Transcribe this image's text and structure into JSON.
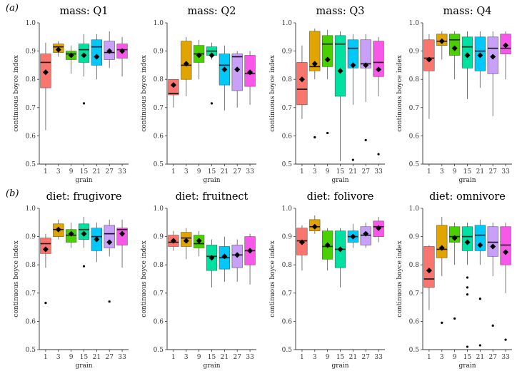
{
  "row_labels": [
    "(a)",
    "(b)"
  ],
  "colors": [
    "#F8766D",
    "#E0A500",
    "#4AD000",
    "#00E0A0",
    "#00C8F8",
    "#C9A0F8",
    "#F858E8"
  ],
  "chart_data": [
    {
      "type": "box",
      "title": "mass: Q1",
      "xlabel": "grain",
      "ylabel": "continuous boyce index",
      "categories": [
        "1",
        "3",
        "9",
        "15",
        "21",
        "27",
        "33"
      ],
      "ylim": [
        0.5,
        1.0
      ],
      "yticks": [
        "0.5",
        "0.6",
        "0.7",
        "0.8",
        "0.9",
        "1.0"
      ],
      "boxes": [
        {
          "whisker_low": 0.62,
          "q1": 0.77,
          "median": 0.86,
          "q3": 0.89,
          "whisker_high": 0.93,
          "mean": 0.825,
          "outliers": []
        },
        {
          "whisker_low": 0.88,
          "q1": 0.895,
          "median": 0.915,
          "q3": 0.925,
          "whisker_high": 0.935,
          "mean": 0.905,
          "outliers": []
        },
        {
          "whisker_low": 0.82,
          "q1": 0.87,
          "median": 0.89,
          "q3": 0.9,
          "whisker_high": 0.92,
          "mean": 0.885,
          "outliers": []
        },
        {
          "whisker_low": 0.81,
          "q1": 0.86,
          "median": 0.905,
          "q3": 0.925,
          "whisker_high": 0.96,
          "mean": 0.885,
          "outliers": [
            0.715
          ]
        },
        {
          "whisker_low": 0.8,
          "q1": 0.85,
          "median": 0.915,
          "q3": 0.94,
          "whisker_high": 0.96,
          "mean": 0.88,
          "outliers": []
        },
        {
          "whisker_low": 0.84,
          "q1": 0.87,
          "median": 0.895,
          "q3": 0.935,
          "whisker_high": 0.97,
          "mean": 0.9,
          "outliers": []
        },
        {
          "whisker_low": 0.81,
          "q1": 0.875,
          "median": 0.905,
          "q3": 0.925,
          "whisker_high": 0.95,
          "mean": 0.9,
          "outliers": []
        }
      ]
    },
    {
      "type": "box",
      "title": "mass: Q2",
      "xlabel": "grain",
      "ylabel": "continuous boyce index",
      "categories": [
        "1",
        "3",
        "9",
        "15",
        "21",
        "27",
        "33"
      ],
      "ylim": [
        0.5,
        1.0
      ],
      "yticks": [
        "0.5",
        "0.6",
        "0.7",
        "0.8",
        "0.9",
        "1.0"
      ],
      "boxes": [
        {
          "whisker_low": 0.7,
          "q1": 0.745,
          "median": 0.75,
          "q3": 0.8,
          "whisker_high": 0.8,
          "mean": 0.78,
          "outliers": []
        },
        {
          "whisker_low": 0.74,
          "q1": 0.8,
          "median": 0.85,
          "q3": 0.935,
          "whisker_high": 0.95,
          "mean": 0.855,
          "outliers": []
        },
        {
          "whisker_low": 0.8,
          "q1": 0.86,
          "median": 0.89,
          "q3": 0.92,
          "whisker_high": 0.94,
          "mean": 0.885,
          "outliers": []
        },
        {
          "whisker_low": 0.87,
          "q1": 0.885,
          "median": 0.9,
          "q3": 0.915,
          "whisker_high": 0.93,
          "mean": 0.885,
          "outliers": [
            0.715
          ]
        },
        {
          "whisker_low": 0.69,
          "q1": 0.78,
          "median": 0.85,
          "q3": 0.89,
          "whisker_high": 0.92,
          "mean": 0.835,
          "outliers": []
        },
        {
          "whisker_low": 0.7,
          "q1": 0.76,
          "median": 0.88,
          "q3": 0.89,
          "whisker_high": 0.9,
          "mean": 0.835,
          "outliers": []
        },
        {
          "whisker_low": 0.71,
          "q1": 0.775,
          "median": 0.82,
          "q3": 0.885,
          "whisker_high": 0.9,
          "mean": 0.825,
          "outliers": []
        }
      ]
    },
    {
      "type": "box",
      "title": "mass: Q3",
      "xlabel": "grain",
      "ylabel": "continuous boyce index",
      "categories": [
        "1",
        "3",
        "9",
        "15",
        "21",
        "27",
        "33"
      ],
      "ylim": [
        0.5,
        1.0
      ],
      "yticks": [
        "0.5",
        "0.6",
        "0.7",
        "0.8",
        "0.9",
        "1.0"
      ],
      "boxes": [
        {
          "whisker_low": 0.66,
          "q1": 0.71,
          "median": 0.765,
          "q3": 0.86,
          "whisker_high": 0.92,
          "mean": 0.8,
          "outliers": []
        },
        {
          "whisker_low": 0.8,
          "q1": 0.83,
          "median": 0.845,
          "q3": 0.97,
          "whisker_high": 0.98,
          "mean": 0.855,
          "outliers": [
            0.595
          ]
        },
        {
          "whisker_low": 0.8,
          "q1": 0.845,
          "median": 0.925,
          "q3": 0.955,
          "whisker_high": 0.975,
          "mean": 0.87,
          "outliers": [
            0.61
          ]
        },
        {
          "whisker_low": 0.51,
          "q1": 0.74,
          "median": 0.925,
          "q3": 0.955,
          "whisker_high": 0.97,
          "mean": 0.83,
          "outliers": []
        },
        {
          "whisker_low": 0.71,
          "q1": 0.84,
          "median": 0.91,
          "q3": 0.94,
          "whisker_high": 0.96,
          "mean": 0.85,
          "outliers": [
            0.515
          ]
        },
        {
          "whisker_low": 0.72,
          "q1": 0.84,
          "median": 0.855,
          "q3": 0.94,
          "whisker_high": 0.96,
          "mean": 0.85,
          "outliers": [
            0.585
          ]
        },
        {
          "whisker_low": 0.74,
          "q1": 0.81,
          "median": 0.86,
          "q3": 0.935,
          "whisker_high": 0.95,
          "mean": 0.835,
          "outliers": [
            0.535
          ]
        }
      ]
    },
    {
      "type": "box",
      "title": "mass: Q4",
      "xlabel": "grain",
      "ylabel": "continuous boyce index",
      "categories": [
        "1",
        "3",
        "9",
        "15",
        "21",
        "27",
        "33"
      ],
      "ylim": [
        0.5,
        1.0
      ],
      "yticks": [
        "0.5",
        "0.6",
        "0.7",
        "0.8",
        "0.9",
        "1.0"
      ],
      "boxes": [
        {
          "whisker_low": 0.66,
          "q1": 0.83,
          "median": 0.875,
          "q3": 0.94,
          "whisker_high": 0.96,
          "mean": 0.87,
          "outliers": []
        },
        {
          "whisker_low": 0.87,
          "q1": 0.92,
          "median": 0.935,
          "q3": 0.96,
          "whisker_high": 0.97,
          "mean": 0.935,
          "outliers": []
        },
        {
          "whisker_low": 0.8,
          "q1": 0.885,
          "median": 0.94,
          "q3": 0.96,
          "whisker_high": 0.97,
          "mean": 0.91,
          "outliers": []
        },
        {
          "whisker_low": 0.73,
          "q1": 0.84,
          "median": 0.915,
          "q3": 0.95,
          "whisker_high": 0.97,
          "mean": 0.885,
          "outliers": []
        },
        {
          "whisker_low": 0.77,
          "q1": 0.83,
          "median": 0.9,
          "q3": 0.95,
          "whisker_high": 0.97,
          "mean": 0.885,
          "outliers": []
        },
        {
          "whisker_low": 0.67,
          "q1": 0.82,
          "median": 0.91,
          "q3": 0.95,
          "whisker_high": 0.97,
          "mean": 0.88,
          "outliers": []
        },
        {
          "whisker_low": 0.8,
          "q1": 0.89,
          "median": 0.91,
          "q3": 0.96,
          "whisker_high": 0.97,
          "mean": 0.92,
          "outliers": []
        }
      ]
    },
    {
      "type": "box",
      "title": "diet: frugivore",
      "xlabel": "grain",
      "ylabel": "continuous boyce index",
      "categories": [
        "1",
        "3",
        "9",
        "15",
        "21",
        "27",
        "33"
      ],
      "ylim": [
        0.5,
        1.0
      ],
      "yticks": [
        "0.5",
        "0.6",
        "0.7",
        "0.8",
        "0.9",
        "1.0"
      ],
      "boxes": [
        {
          "whisker_low": 0.79,
          "q1": 0.84,
          "median": 0.875,
          "q3": 0.895,
          "whisker_high": 0.91,
          "mean": 0.855,
          "outliers": [
            0.665
          ]
        },
        {
          "whisker_low": 0.89,
          "q1": 0.9,
          "median": 0.925,
          "q3": 0.945,
          "whisker_high": 0.96,
          "mean": 0.925,
          "outliers": []
        },
        {
          "whisker_low": 0.86,
          "q1": 0.88,
          "median": 0.905,
          "q3": 0.925,
          "whisker_high": 0.95,
          "mean": 0.91,
          "outliers": []
        },
        {
          "whisker_low": 0.86,
          "q1": 0.89,
          "median": 0.925,
          "q3": 0.945,
          "whisker_high": 0.97,
          "mean": 0.91,
          "outliers": [
            0.795
          ]
        },
        {
          "whisker_low": 0.81,
          "q1": 0.85,
          "median": 0.9,
          "q3": 0.93,
          "whisker_high": 0.95,
          "mean": 0.89,
          "outliers": []
        },
        {
          "whisker_low": 0.83,
          "q1": 0.86,
          "median": 0.91,
          "q3": 0.94,
          "whisker_high": 0.96,
          "mean": 0.88,
          "outliers": [
            0.67
          ]
        },
        {
          "whisker_low": 0.79,
          "q1": 0.87,
          "median": 0.925,
          "q3": 0.93,
          "whisker_high": 0.96,
          "mean": 0.91,
          "outliers": []
        }
      ]
    },
    {
      "type": "box",
      "title": "diet: fruitnect",
      "xlabel": "grain",
      "ylabel": "continuous boyce index",
      "categories": [
        "1",
        "3",
        "9",
        "15",
        "21",
        "27",
        "33"
      ],
      "ylim": [
        0.5,
        1.0
      ],
      "yticks": [
        "0.5",
        "0.6",
        "0.7",
        "0.8",
        "0.9",
        "1.0"
      ],
      "boxes": [
        {
          "whisker_low": 0.85,
          "q1": 0.865,
          "median": 0.88,
          "q3": 0.905,
          "whisker_high": 0.92,
          "mean": 0.885,
          "outliers": []
        },
        {
          "whisker_low": 0.82,
          "q1": 0.865,
          "median": 0.895,
          "q3": 0.915,
          "whisker_high": 0.93,
          "mean": 0.885,
          "outliers": []
        },
        {
          "whisker_low": 0.83,
          "q1": 0.86,
          "median": 0.875,
          "q3": 0.905,
          "whisker_high": 0.92,
          "mean": 0.885,
          "outliers": []
        },
        {
          "whisker_low": 0.72,
          "q1": 0.78,
          "median": 0.83,
          "q3": 0.87,
          "whisker_high": 0.89,
          "mean": 0.825,
          "outliers": []
        },
        {
          "whisker_low": 0.74,
          "q1": 0.785,
          "median": 0.825,
          "q3": 0.865,
          "whisker_high": 0.9,
          "mean": 0.83,
          "outliers": []
        },
        {
          "whisker_low": 0.74,
          "q1": 0.79,
          "median": 0.835,
          "q3": 0.87,
          "whisker_high": 0.89,
          "mean": 0.835,
          "outliers": []
        },
        {
          "whisker_low": 0.73,
          "q1": 0.8,
          "median": 0.85,
          "q3": 0.9,
          "whisker_high": 0.91,
          "mean": 0.85,
          "outliers": []
        }
      ]
    },
    {
      "type": "box",
      "title": "diet: folivore",
      "xlabel": "grain",
      "ylabel": "continuous boyce index",
      "categories": [
        "1",
        "3",
        "9",
        "15",
        "21",
        "27",
        "33"
      ],
      "ylim": [
        0.5,
        1.0
      ],
      "yticks": [
        "0.5",
        "0.6",
        "0.7",
        "0.8",
        "0.9",
        "1.0"
      ],
      "boxes": [
        {
          "whisker_low": 0.78,
          "q1": 0.835,
          "median": 0.885,
          "q3": 0.93,
          "whisker_high": 0.94,
          "mean": 0.88,
          "outliers": []
        },
        {
          "whisker_low": 0.91,
          "q1": 0.92,
          "median": 0.935,
          "q3": 0.96,
          "whisker_high": 0.975,
          "mean": 0.935,
          "outliers": []
        },
        {
          "whisker_low": 0.78,
          "q1": 0.82,
          "median": 0.865,
          "q3": 0.92,
          "whisker_high": 0.93,
          "mean": 0.87,
          "outliers": []
        },
        {
          "whisker_low": 0.72,
          "q1": 0.79,
          "median": 0.855,
          "q3": 0.92,
          "whisker_high": 0.93,
          "mean": 0.855,
          "outliers": []
        },
        {
          "whisker_low": 0.86,
          "q1": 0.88,
          "median": 0.9,
          "q3": 0.92,
          "whisker_high": 0.945,
          "mean": 0.9,
          "outliers": []
        },
        {
          "whisker_low": 0.86,
          "q1": 0.87,
          "median": 0.905,
          "q3": 0.935,
          "whisker_high": 0.95,
          "mean": 0.91,
          "outliers": []
        },
        {
          "whisker_low": 0.88,
          "q1": 0.9,
          "median": 0.935,
          "q3": 0.955,
          "whisker_high": 0.97,
          "mean": 0.93,
          "outliers": []
        }
      ]
    },
    {
      "type": "box",
      "title": "diet: omnivore",
      "xlabel": "grain",
      "ylabel": "continuous boyce index",
      "categories": [
        "1",
        "3",
        "9",
        "15",
        "21",
        "27",
        "33"
      ],
      "ylim": [
        0.5,
        1.0
      ],
      "yticks": [
        "0.5",
        "0.6",
        "0.7",
        "0.8",
        "0.9",
        "1.0"
      ],
      "boxes": [
        {
          "whisker_low": 0.64,
          "q1": 0.72,
          "median": 0.75,
          "q3": 0.865,
          "whisker_high": 0.87,
          "mean": 0.78,
          "outliers": []
        },
        {
          "whisker_low": 0.76,
          "q1": 0.825,
          "median": 0.855,
          "q3": 0.94,
          "whisker_high": 0.97,
          "mean": 0.86,
          "outliers": [
            0.595
          ]
        },
        {
          "whisker_low": 0.8,
          "q1": 0.88,
          "median": 0.9,
          "q3": 0.935,
          "whisker_high": 0.95,
          "mean": 0.895,
          "outliers": [
            0.61
          ]
        },
        {
          "whisker_low": 0.8,
          "q1": 0.85,
          "median": 0.9,
          "q3": 0.935,
          "whisker_high": 0.95,
          "mean": 0.88,
          "outliers": [
            0.755,
            0.72,
            0.695,
            0.51
          ]
        },
        {
          "whisker_low": 0.8,
          "q1": 0.85,
          "median": 0.905,
          "q3": 0.94,
          "whisker_high": 0.96,
          "mean": 0.87,
          "outliers": [
            0.68,
            0.515
          ]
        },
        {
          "whisker_low": 0.76,
          "q1": 0.83,
          "median": 0.88,
          "q3": 0.935,
          "whisker_high": 0.95,
          "mean": 0.865,
          "outliers": [
            0.585
          ]
        },
        {
          "whisker_low": 0.7,
          "q1": 0.8,
          "median": 0.87,
          "q3": 0.935,
          "whisker_high": 0.95,
          "mean": 0.845,
          "outliers": [
            0.535
          ]
        }
      ]
    }
  ]
}
